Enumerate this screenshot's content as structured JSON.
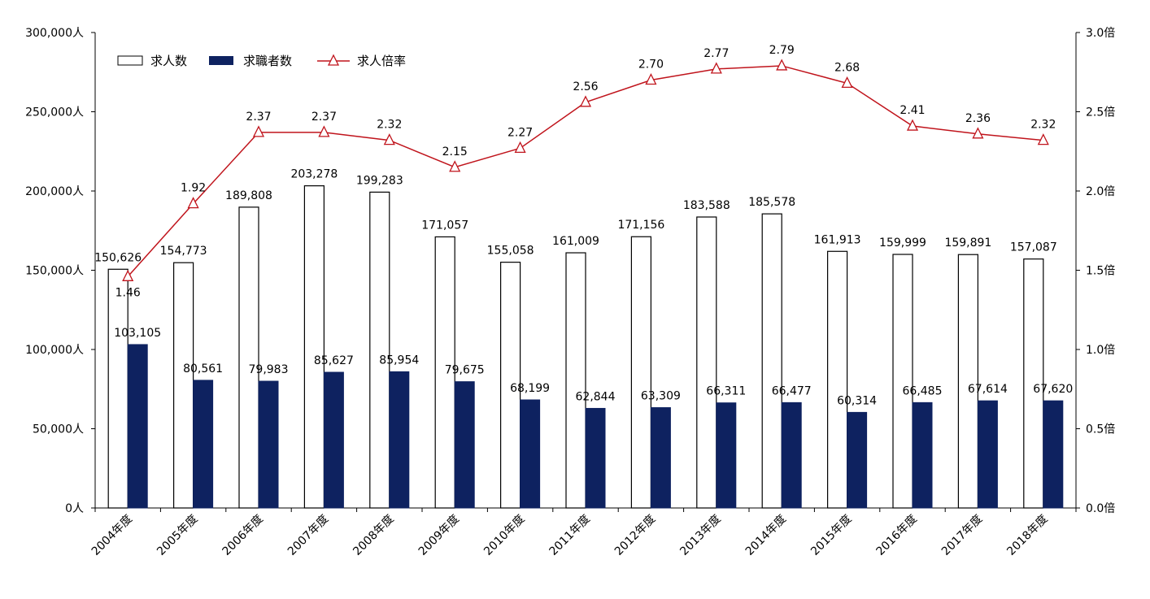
{
  "chart_data": {
    "type": "bar",
    "categories": [
      "2004年度",
      "2005年度",
      "2006年度",
      "2007年度",
      "2008年度",
      "2009年度",
      "2010年度",
      "2011年度",
      "2012年度",
      "2013年度",
      "2014年度",
      "2015年度",
      "2016年度",
      "2017年度",
      "2018年度"
    ],
    "series": [
      {
        "name": "求人数",
        "kind": "bar",
        "axis": "left",
        "values": [
          150626,
          154773,
          189808,
          203278,
          199283,
          171057,
          155058,
          161009,
          171156,
          183588,
          185578,
          161913,
          159999,
          159891,
          157087
        ],
        "labels": [
          "150,626",
          "154,773",
          "189,808",
          "203,278",
          "199,283",
          "171,057",
          "155,058",
          "161,009",
          "171,156",
          "183,588",
          "185,578",
          "161,913",
          "159,999",
          "159,891",
          "157,087"
        ],
        "fill": "#ffffff",
        "stroke": "#000000"
      },
      {
        "name": "求職者数",
        "kind": "bar",
        "axis": "left",
        "values": [
          103105,
          80561,
          79983,
          85627,
          85954,
          79675,
          68199,
          62844,
          63309,
          66311,
          66477,
          60314,
          66485,
          67614,
          67620
        ],
        "labels": [
          "103,105",
          "80,561",
          "79,983",
          "85,627",
          "85,954",
          "79,675",
          "68,199",
          "62,844",
          "63,309",
          "66,311",
          "66,477",
          "60,314",
          "66,485",
          "67,614",
          "67,620"
        ],
        "fill": "#0e2260"
      },
      {
        "name": "求人倍率",
        "kind": "line",
        "axis": "right",
        "marker": "triangle",
        "values": [
          1.46,
          1.92,
          2.37,
          2.37,
          2.32,
          2.15,
          2.27,
          2.56,
          2.7,
          2.77,
          2.79,
          2.68,
          2.41,
          2.36,
          2.32
        ],
        "labels": [
          "1.46",
          "1.92",
          "2.37",
          "2.37",
          "2.32",
          "2.15",
          "2.27",
          "2.56",
          "2.70",
          "2.77",
          "2.79",
          "2.68",
          "2.41",
          "2.36",
          "2.32"
        ],
        "color": "#c0141c"
      }
    ],
    "y_left": {
      "ylim": [
        0,
        300000
      ],
      "ticks": [
        0,
        50000,
        100000,
        150000,
        200000,
        250000,
        300000
      ],
      "tick_labels": [
        "0人",
        "50,000人",
        "100,000人",
        "150,000人",
        "200,000人",
        "250,000人",
        "300,000人"
      ]
    },
    "y_right": {
      "ylim": [
        0,
        3.0
      ],
      "ticks": [
        0,
        0.5,
        1.0,
        1.5,
        2.0,
        2.5,
        3.0
      ],
      "tick_labels": [
        "0.0倍",
        "0.5倍",
        "1.0倍",
        "1.5倍",
        "2.0倍",
        "2.5倍",
        "3.0倍"
      ]
    },
    "legend_position": "top-left",
    "grid": false
  }
}
